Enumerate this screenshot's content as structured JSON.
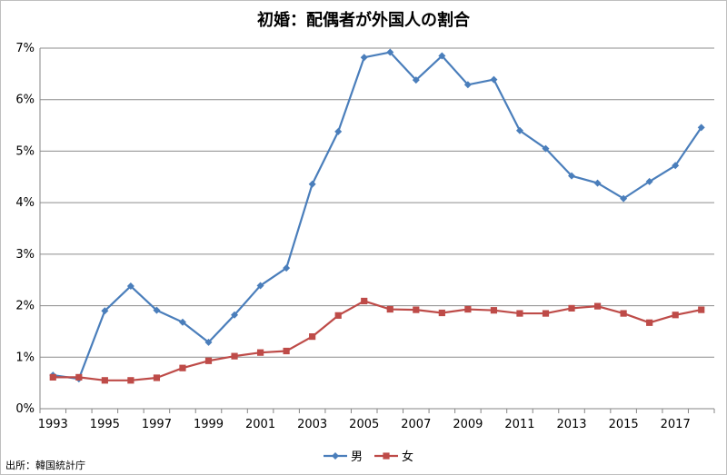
{
  "chart_data": {
    "type": "line",
    "title": "初婚：配偶者が外国人の割合",
    "xlabel": "",
    "ylabel": "",
    "x": [
      1993,
      1994,
      1995,
      1996,
      1997,
      1998,
      1999,
      2000,
      2001,
      2002,
      2003,
      2004,
      2005,
      2006,
      2007,
      2008,
      2009,
      2010,
      2011,
      2012,
      2013,
      2014,
      2015,
      2016,
      2017,
      2018
    ],
    "x_tick_labels": [
      "1993",
      "1995",
      "1997",
      "1999",
      "2001",
      "2003",
      "2005",
      "2007",
      "2009",
      "2011",
      "2013",
      "2015",
      "2017"
    ],
    "y_tick_labels": [
      "0%",
      "1%",
      "2%",
      "3%",
      "4%",
      "5%",
      "6%",
      "7%"
    ],
    "ylim": [
      0,
      7
    ],
    "grid": "horizontal",
    "legend_position": "bottom",
    "series": [
      {
        "name": "男",
        "color": "#4a7ebb",
        "marker": "diamond",
        "values": [
          0.65,
          0.58,
          1.9,
          2.38,
          1.91,
          1.68,
          1.29,
          1.82,
          2.39,
          2.73,
          4.36,
          5.38,
          6.82,
          6.92,
          6.38,
          6.85,
          6.29,
          6.39,
          5.4,
          5.05,
          4.52,
          4.38,
          4.08,
          4.41,
          4.72,
          5.46
        ]
      },
      {
        "name": "女",
        "color": "#be4b48",
        "marker": "square",
        "values": [
          0.61,
          0.61,
          0.55,
          0.55,
          0.6,
          0.79,
          0.93,
          1.02,
          1.09,
          1.12,
          1.4,
          1.81,
          2.09,
          1.93,
          1.92,
          1.86,
          1.93,
          1.91,
          1.85,
          1.85,
          1.95,
          1.99,
          1.85,
          1.67,
          1.82,
          1.92
        ]
      }
    ]
  },
  "source_text": "出所：韓国統計庁"
}
